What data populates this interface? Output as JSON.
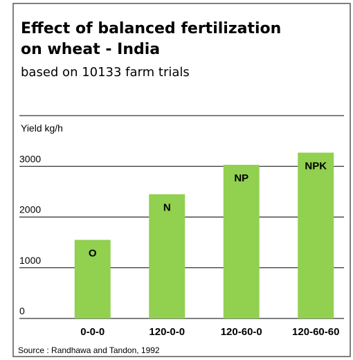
{
  "chart_data": {
    "type": "bar",
    "title": [
      "Effect of balanced fertilization",
      "on wheat - India"
    ],
    "subtitle": "based on 10133 farm trials",
    "y_label": "Yield kg/h",
    "categories": [
      "0-0-0",
      "120-0-0",
      "120-60-0",
      "120-60-60"
    ],
    "values": [
      1550,
      2450,
      3030,
      3270
    ],
    "bar_labels": [
      "O",
      "N",
      "NP",
      "NPK"
    ],
    "color": "#92d050",
    "ylim": [
      0,
      4000
    ],
    "yticks": [
      0,
      1000,
      2000,
      3000
    ],
    "grid": true,
    "source": "Source :  Randhawa and Tandon, 1992"
  }
}
